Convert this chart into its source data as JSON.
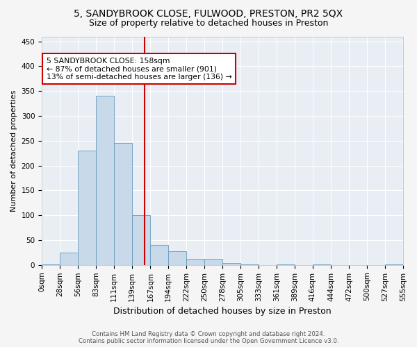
{
  "title": "5, SANDYBROOK CLOSE, FULWOOD, PRESTON, PR2 5QX",
  "subtitle": "Size of property relative to detached houses in Preston",
  "xlabel": "Distribution of detached houses by size in Preston",
  "ylabel": "Number of detached properties",
  "bar_color": "#c8daea",
  "bar_edge_color": "#6699bb",
  "background_color": "#e8eef4",
  "grid_color": "#ffffff",
  "annotation_line_color": "#cc0000",
  "annotation_box_color": "#cc0000",
  "annotation_line1": "5 SANDYBROOK CLOSE: 158sqm",
  "annotation_line2": "← 87% of detached houses are smaller (901)",
  "annotation_line3": "13% of semi-detached houses are larger (136) →",
  "property_size": 158,
  "bin_edges": [
    0,
    28,
    56,
    83,
    111,
    139,
    167,
    194,
    222,
    250,
    278,
    305,
    333,
    361,
    389,
    416,
    444,
    472,
    500,
    527,
    555
  ],
  "bin_counts": [
    1,
    25,
    230,
    340,
    245,
    100,
    40,
    28,
    13,
    12,
    4,
    1,
    0,
    1,
    0,
    1,
    0,
    0,
    0,
    1
  ],
  "tick_labels": [
    "0sqm",
    "28sqm",
    "56sqm",
    "83sqm",
    "111sqm",
    "139sqm",
    "167sqm",
    "194sqm",
    "222sqm",
    "250sqm",
    "278sqm",
    "305sqm",
    "333sqm",
    "361sqm",
    "389sqm",
    "416sqm",
    "444sqm",
    "472sqm",
    "500sqm",
    "527sqm",
    "555sqm"
  ],
  "ylim": [
    0,
    460
  ],
  "yticks": [
    0,
    50,
    100,
    150,
    200,
    250,
    300,
    350,
    400,
    450
  ],
  "footer_text": "Contains HM Land Registry data © Crown copyright and database right 2024.\nContains public sector information licensed under the Open Government Licence v3.0.",
  "title_fontsize": 10,
  "subtitle_fontsize": 9,
  "tick_fontsize": 7.5,
  "ylabel_fontsize": 8,
  "xlabel_fontsize": 9
}
